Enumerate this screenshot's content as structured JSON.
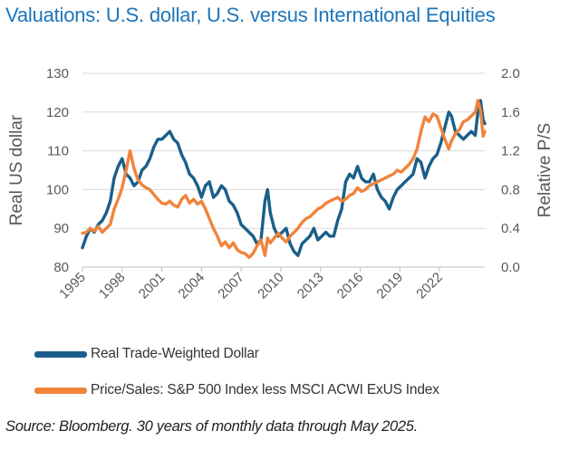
{
  "title": "Valuations: U.S. dollar, U.S. versus International Equities",
  "source": "Source: Bloomberg. 30 years of monthly data through May 2025.",
  "colors": {
    "dollar": "#1a5e8a",
    "ps": "#f0843c",
    "title": "#1b75bb",
    "axis": "#595959"
  },
  "chart_data": {
    "type": "line",
    "xlabel": "",
    "ylabel": "Real US dollar",
    "y2label": "Relative P/S",
    "xlim": [
      1995.0,
      2025.42
    ],
    "ylim": [
      80,
      130
    ],
    "y2lim": [
      0.0,
      2.0
    ],
    "xtick_values": [
      1995,
      1998,
      2001,
      2004,
      2007,
      2010,
      2013,
      2016,
      2019,
      2022
    ],
    "xtick_labels": [
      "1995",
      "1998",
      "2001",
      "2004",
      "2007",
      "2010",
      "2013",
      "2016",
      "2019",
      "2022"
    ],
    "ytick_labels": [
      "80",
      "90",
      "100",
      "110",
      "120",
      "130"
    ],
    "y2tick_labels": [
      "0.0",
      "0.4",
      "0.8",
      "1.2",
      "1.6",
      "2.0"
    ],
    "legend_position": "bottom",
    "series": [
      {
        "name": "Real Trade-Weighted Dollar",
        "axis": "left",
        "x": [
          1995.0,
          1995.3,
          1995.6,
          1995.9,
          1996.2,
          1996.5,
          1996.8,
          1997.1,
          1997.4,
          1997.7,
          1998.0,
          1998.3,
          1998.6,
          1998.9,
          1999.2,
          1999.5,
          1999.8,
          2000.1,
          2000.4,
          2000.7,
          2001.0,
          2001.3,
          2001.6,
          2001.9,
          2002.2,
          2002.5,
          2002.8,
          2003.1,
          2003.4,
          2003.7,
          2004.0,
          2004.3,
          2004.6,
          2004.9,
          2005.2,
          2005.5,
          2005.8,
          2006.1,
          2006.4,
          2006.7,
          2007.0,
          2007.3,
          2007.6,
          2007.9,
          2008.2,
          2008.5,
          2008.8,
          2009.0,
          2009.2,
          2009.5,
          2009.8,
          2010.1,
          2010.4,
          2010.7,
          2011.0,
          2011.3,
          2011.6,
          2011.9,
          2012.2,
          2012.5,
          2012.8,
          2013.1,
          2013.4,
          2013.7,
          2014.0,
          2014.3,
          2014.6,
          2014.9,
          2015.2,
          2015.5,
          2015.8,
          2016.1,
          2016.4,
          2016.7,
          2017.0,
          2017.3,
          2017.6,
          2017.9,
          2018.2,
          2018.5,
          2018.8,
          2019.1,
          2019.4,
          2019.7,
          2020.0,
          2020.3,
          2020.6,
          2020.9,
          2021.2,
          2021.5,
          2021.8,
          2022.1,
          2022.4,
          2022.7,
          2022.9,
          2023.2,
          2023.5,
          2023.8,
          2024.1,
          2024.4,
          2024.7,
          2024.9,
          2025.1,
          2025.3,
          2025.42
        ],
        "values": [
          85,
          88,
          90,
          89,
          91,
          92,
          94,
          97,
          103,
          106,
          108,
          104,
          103,
          101,
          102,
          105,
          106,
          108,
          111,
          113,
          113,
          114,
          115,
          113,
          112,
          109,
          107,
          104,
          103,
          101,
          98,
          101,
          102,
          98,
          99,
          101,
          100,
          97,
          96,
          94,
          91,
          90,
          89,
          88,
          86,
          87,
          97,
          100,
          94,
          90,
          88,
          89,
          90,
          86,
          84,
          83,
          86,
          87,
          88,
          90,
          87,
          88,
          89,
          88,
          88,
          92,
          95,
          102,
          104,
          103,
          106,
          103,
          102,
          102,
          104,
          100,
          98,
          97,
          95,
          98,
          100,
          101,
          102,
          103,
          104,
          108,
          107,
          103,
          106,
          108,
          109,
          112,
          116,
          120,
          119,
          115,
          114,
          113,
          114,
          115,
          114,
          120,
          123,
          118,
          117
        ]
      },
      {
        "name": "Price/Sales: S&P 500 Index less MSCI ACWI ExUS Index",
        "axis": "right",
        "x": [
          1995.0,
          1995.3,
          1995.6,
          1995.9,
          1996.2,
          1996.5,
          1996.8,
          1997.1,
          1997.4,
          1997.7,
          1998.0,
          1998.3,
          1998.6,
          1998.9,
          1999.2,
          1999.5,
          1999.8,
          2000.1,
          2000.4,
          2000.7,
          2001.0,
          2001.3,
          2001.6,
          2001.9,
          2002.2,
          2002.5,
          2002.8,
          2003.1,
          2003.4,
          2003.7,
          2004.0,
          2004.3,
          2004.6,
          2004.9,
          2005.2,
          2005.5,
          2005.8,
          2006.1,
          2006.4,
          2006.7,
          2007.0,
          2007.3,
          2007.6,
          2007.9,
          2008.2,
          2008.5,
          2008.8,
          2009.0,
          2009.2,
          2009.5,
          2009.8,
          2010.1,
          2010.4,
          2010.7,
          2011.0,
          2011.3,
          2011.6,
          2011.9,
          2012.2,
          2012.5,
          2012.8,
          2013.1,
          2013.4,
          2013.7,
          2014.0,
          2014.3,
          2014.6,
          2014.9,
          2015.2,
          2015.5,
          2015.8,
          2016.1,
          2016.4,
          2016.7,
          2017.0,
          2017.3,
          2017.6,
          2017.9,
          2018.2,
          2018.5,
          2018.8,
          2019.1,
          2019.4,
          2019.7,
          2020.0,
          2020.3,
          2020.6,
          2020.9,
          2021.2,
          2021.5,
          2021.8,
          2022.1,
          2022.4,
          2022.7,
          2022.9,
          2023.2,
          2023.5,
          2023.8,
          2024.1,
          2024.4,
          2024.7,
          2024.9,
          2025.1,
          2025.3,
          2025.42
        ],
        "values": [
          0.35,
          0.36,
          0.4,
          0.37,
          0.42,
          0.36,
          0.4,
          0.44,
          0.6,
          0.7,
          0.82,
          1.0,
          1.2,
          1.02,
          0.9,
          0.85,
          0.82,
          0.8,
          0.75,
          0.7,
          0.66,
          0.65,
          0.68,
          0.64,
          0.62,
          0.7,
          0.74,
          0.66,
          0.7,
          0.65,
          0.68,
          0.6,
          0.5,
          0.4,
          0.32,
          0.22,
          0.26,
          0.2,
          0.25,
          0.18,
          0.15,
          0.14,
          0.1,
          0.14,
          0.22,
          0.28,
          0.12,
          0.3,
          0.25,
          0.3,
          0.35,
          0.3,
          0.26,
          0.32,
          0.36,
          0.4,
          0.46,
          0.5,
          0.52,
          0.56,
          0.6,
          0.62,
          0.66,
          0.68,
          0.7,
          0.72,
          0.68,
          0.7,
          0.74,
          0.76,
          0.82,
          0.78,
          0.8,
          0.84,
          0.86,
          0.88,
          0.9,
          0.92,
          0.94,
          0.96,
          1.0,
          0.98,
          1.02,
          1.06,
          1.12,
          1.22,
          1.4,
          1.55,
          1.5,
          1.58,
          1.56,
          1.44,
          1.32,
          1.22,
          1.3,
          1.38,
          1.42,
          1.5,
          1.52,
          1.56,
          1.6,
          1.72,
          1.62,
          1.35,
          1.4
        ]
      }
    ]
  }
}
